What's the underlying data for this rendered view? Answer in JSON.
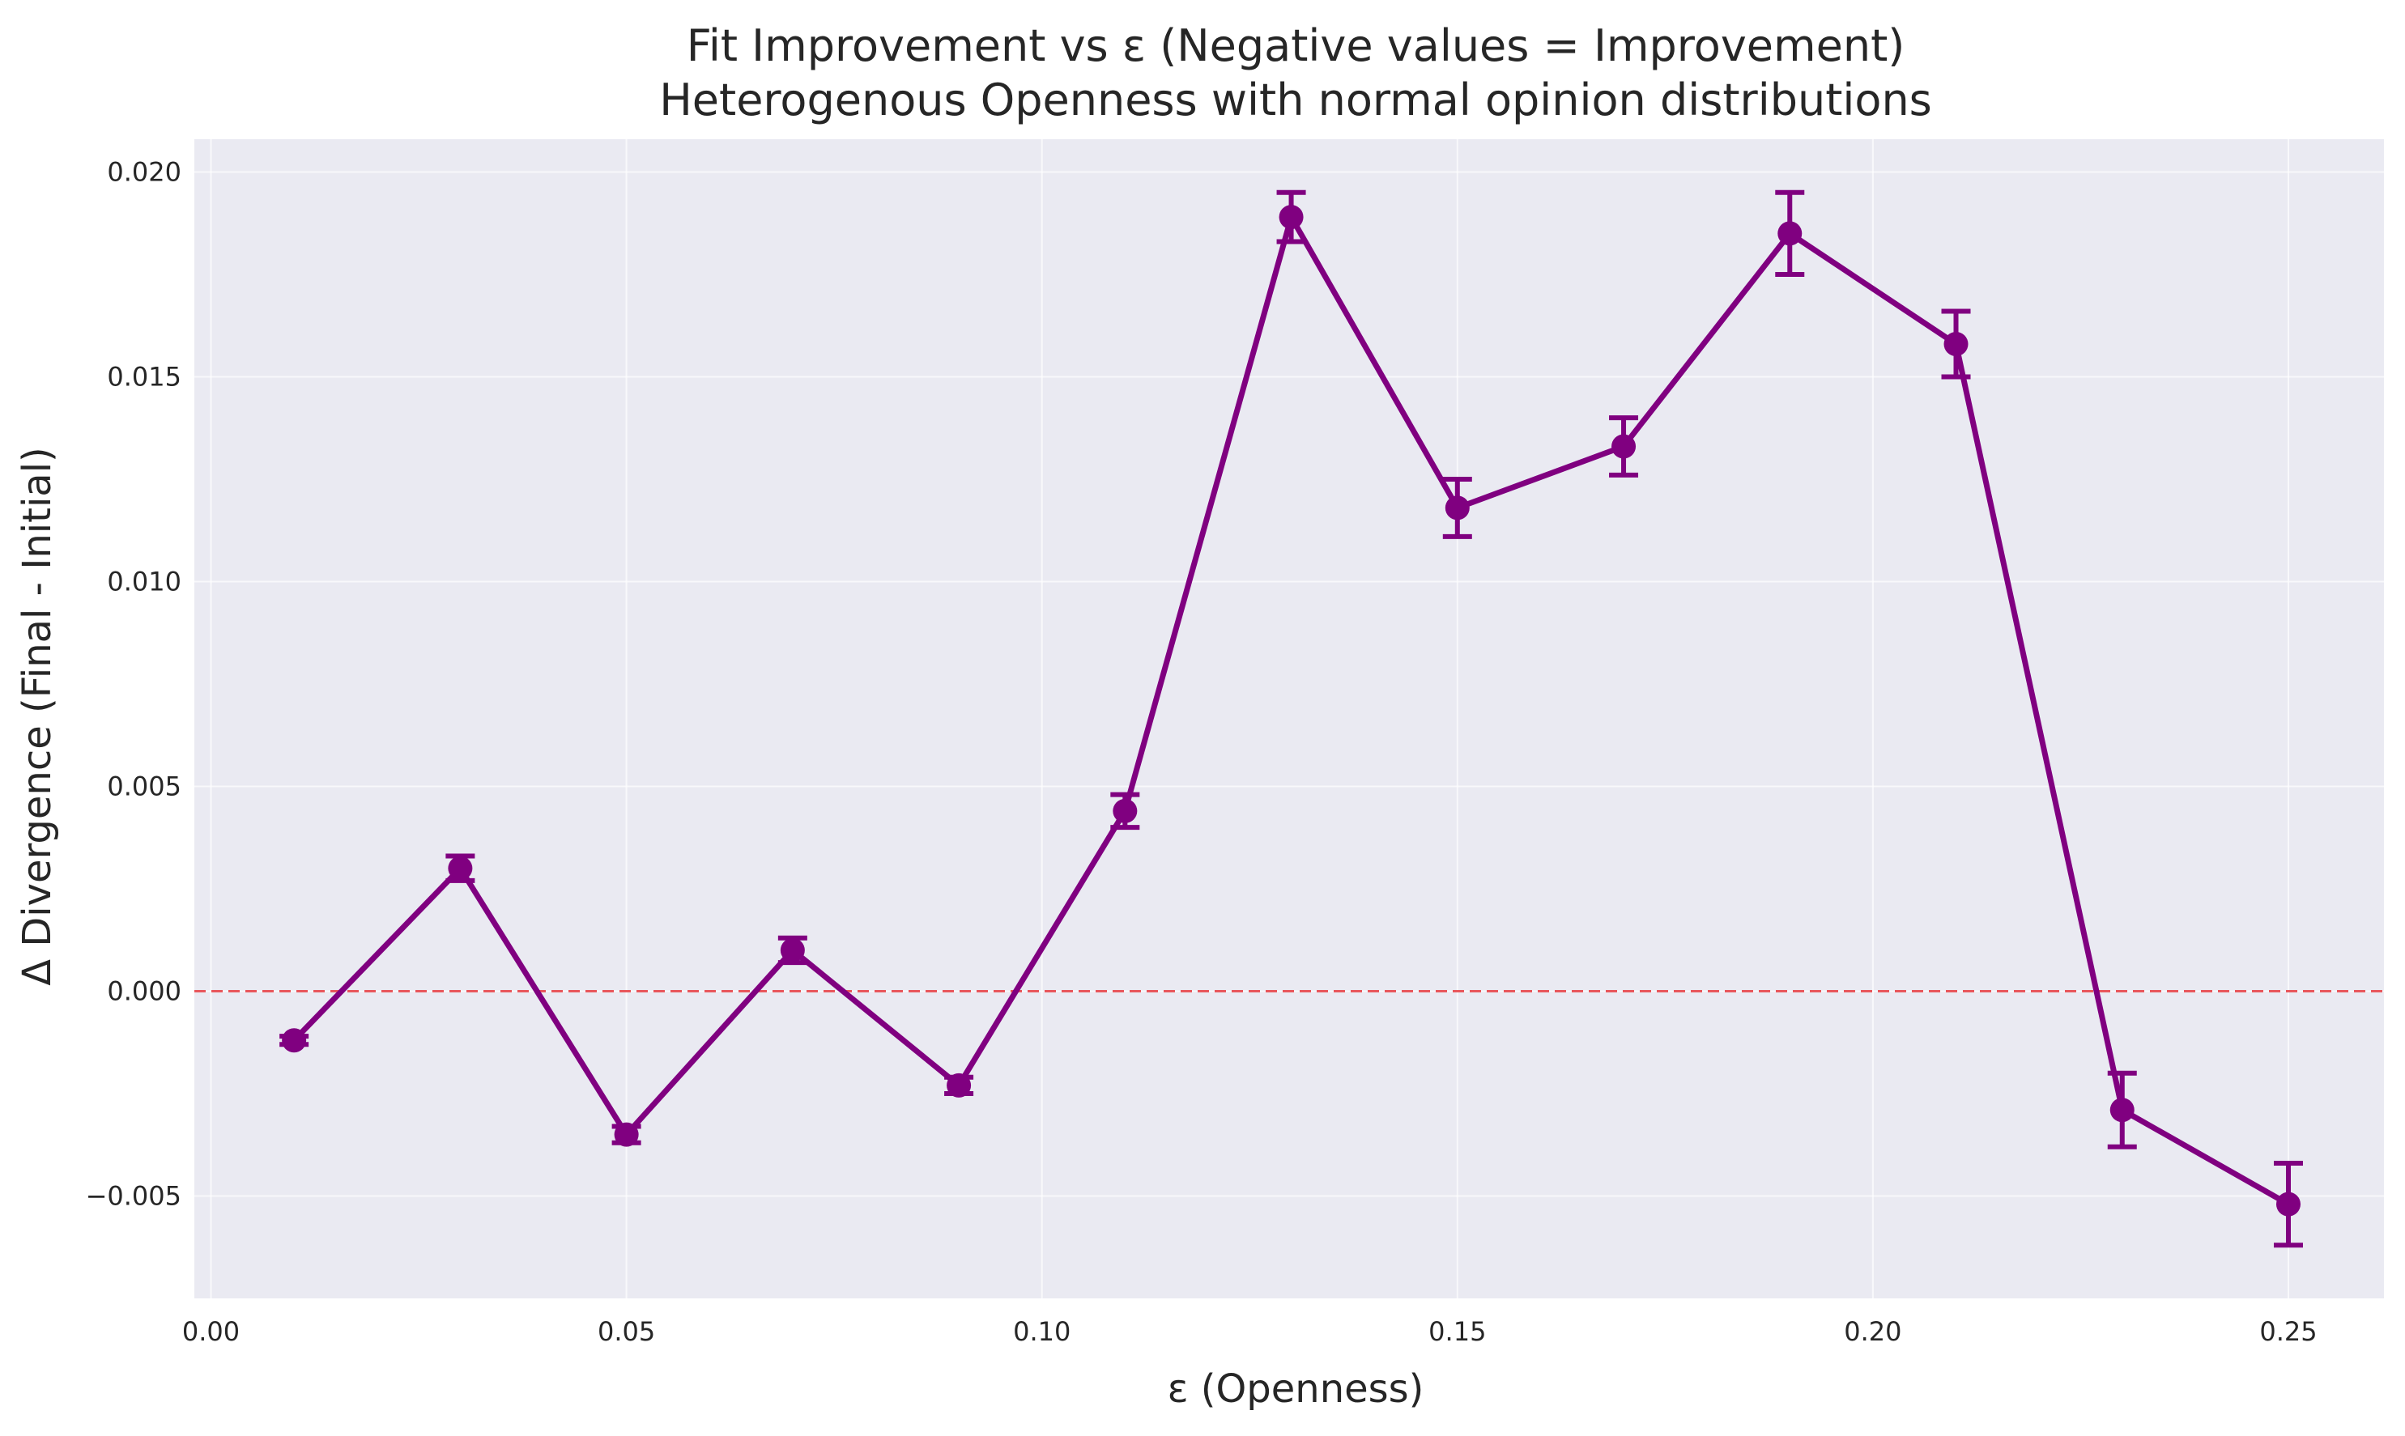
{
  "chart_data": {
    "type": "line",
    "title": "Fit Improvement vs ε (Negative values = Improvement)",
    "subtitle": "Heterogenous Openness with normal opinion distributions",
    "xlabel": "ε (Openness)",
    "ylabel": "Δ Divergence (Final - Initial)",
    "xlim": [
      -0.002,
      0.2615
    ],
    "ylim": [
      -0.0075,
      0.0208
    ],
    "x_ticks": [
      0.0,
      0.05,
      0.1,
      0.15,
      0.2,
      0.25
    ],
    "x_tick_labels": [
      "0.00",
      "0.05",
      "0.10",
      "0.15",
      "0.20",
      "0.25"
    ],
    "y_ticks": [
      -0.005,
      0.0,
      0.005,
      0.01,
      0.015,
      0.02
    ],
    "y_tick_labels": [
      "−0.005",
      "0.000",
      "0.005",
      "0.010",
      "0.015",
      "0.020"
    ],
    "grid": true,
    "reference_line": {
      "y": 0.0,
      "style": "dashed",
      "color": "#e8474c"
    },
    "series": [
      {
        "color": "#800080",
        "x": [
          0.01,
          0.03,
          0.05,
          0.07,
          0.09,
          0.11,
          0.13,
          0.15,
          0.17,
          0.19,
          0.21,
          0.23,
          0.25
        ],
        "y": [
          -0.0012,
          0.003,
          -0.0035,
          0.001,
          -0.0023,
          0.0044,
          0.0189,
          0.0118,
          0.0133,
          0.0185,
          0.0158,
          -0.0029,
          -0.0052
        ],
        "yerr": [
          0.0001,
          0.0003,
          0.0002,
          0.0003,
          0.0002,
          0.0004,
          0.0006,
          0.0007,
          0.0007,
          0.001,
          0.0008,
          0.0009,
          0.001
        ]
      }
    ]
  }
}
